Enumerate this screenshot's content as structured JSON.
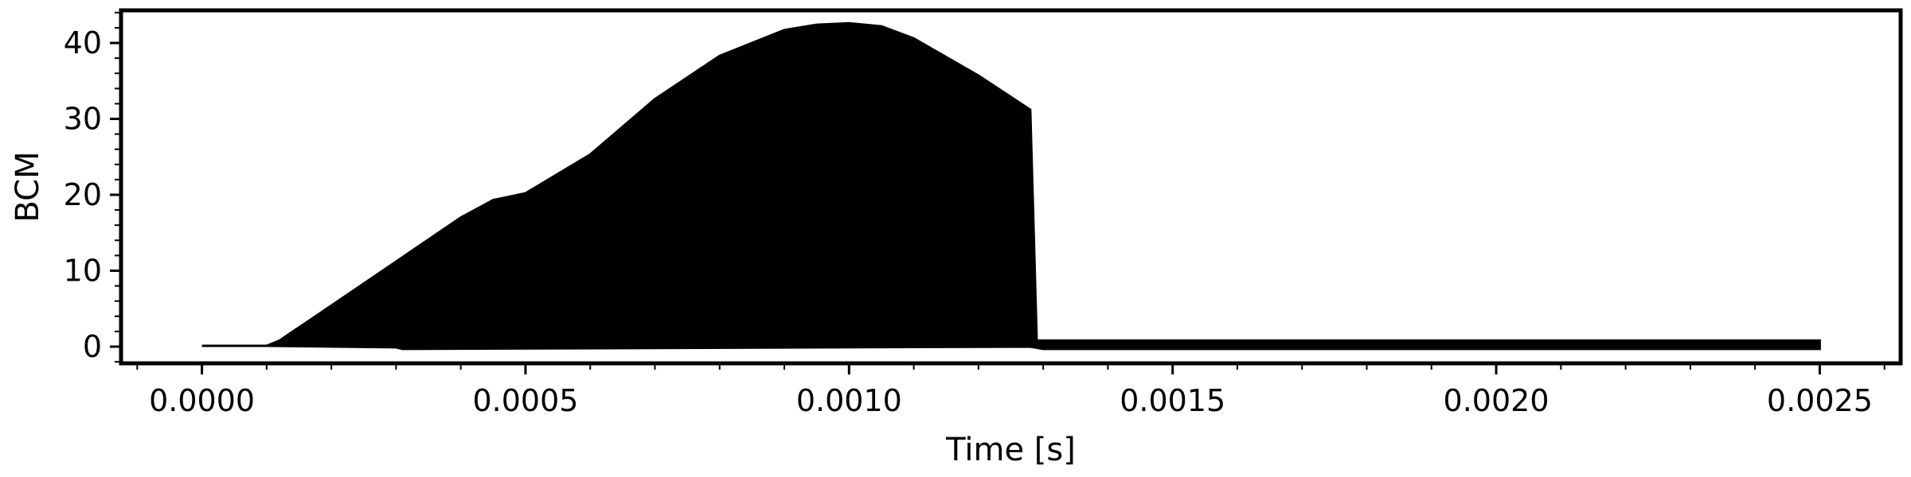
{
  "chart_data": {
    "type": "area",
    "title": "",
    "xlabel": "Time [s]",
    "ylabel": "BCM",
    "xlim": [
      -0.000125,
      0.002625
    ],
    "ylim": [
      -2.2,
      44.3
    ],
    "x_ticks": [
      0.0,
      0.0005,
      0.001,
      0.0015,
      0.002,
      0.0025
    ],
    "x_tick_labels": [
      "0.0000",
      "0.0005",
      "0.0010",
      "0.0015",
      "0.0020",
      "0.0025"
    ],
    "y_ticks": [
      0,
      10,
      20,
      30,
      40
    ],
    "y_tick_labels": [
      "0",
      "10",
      "20",
      "30",
      "40"
    ],
    "grid": false,
    "legend": "none",
    "color": "#000000",
    "series": [
      {
        "upper_envelope": {
          "x": [
            0.0,
            0.0001,
            0.00012,
            0.0002,
            0.0003,
            0.0004,
            0.00045,
            0.0005,
            0.0006,
            0.0007,
            0.0008,
            0.0009,
            0.00095,
            0.001,
            0.00105,
            0.0011,
            0.0012,
            0.00128,
            0.00129,
            0.0015,
            0.0025
          ],
          "y": [
            0.1,
            0.1,
            0.8,
            5.4,
            11.2,
            17.0,
            19.3,
            20.2,
            25.3,
            32.6,
            38.3,
            41.7,
            42.4,
            42.6,
            42.2,
            40.6,
            35.7,
            31.2,
            0.8,
            0.8,
            0.8
          ]
        },
        "lower_envelope": {
          "x": [
            0.0,
            0.0001,
            0.0003,
            0.00031,
            0.00128,
            0.0013,
            0.0025
          ],
          "y": [
            0.1,
            0.1,
            -0.1,
            -0.3,
            0.0,
            -0.3,
            -0.3
          ]
        }
      }
    ]
  }
}
